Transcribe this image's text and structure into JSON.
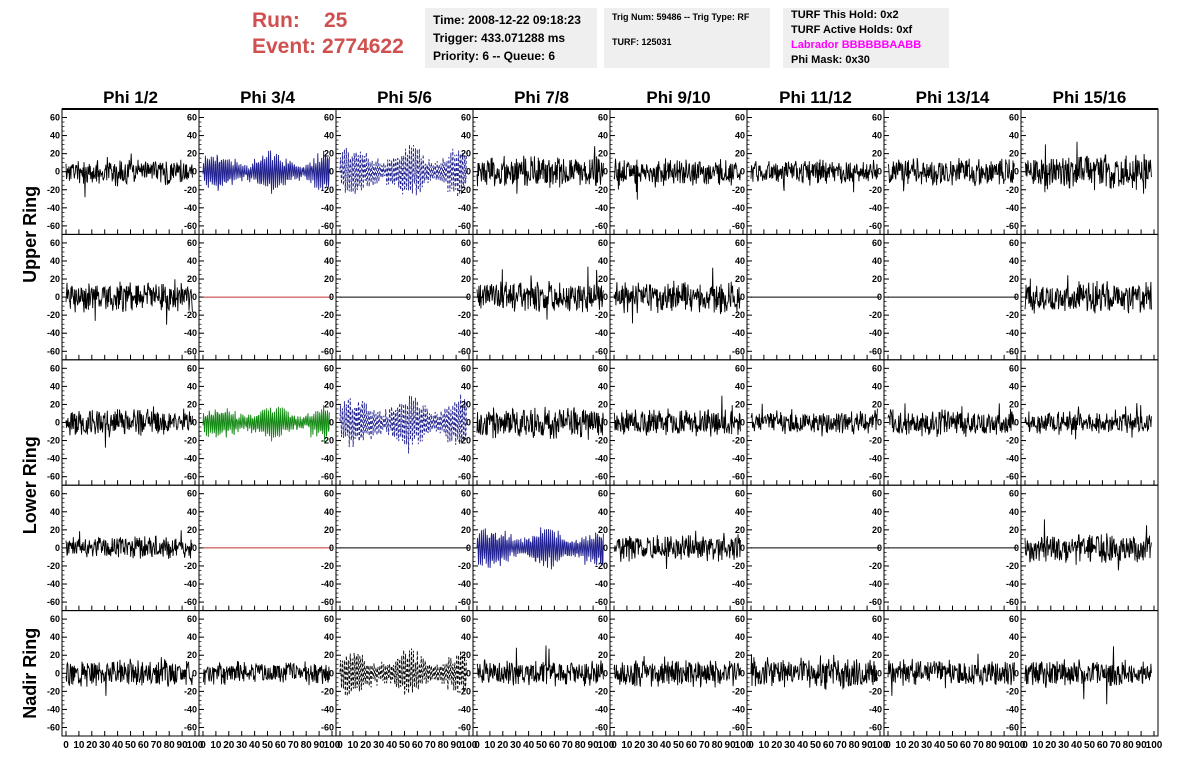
{
  "header": {
    "run_label": "Run:",
    "run_value": "25",
    "event_label": "Event:",
    "event_value": "2774622",
    "time": "Time: 2008-12-22 09:18:23",
    "trigger": "Trigger: 433.071288 ms",
    "priority": "Priority: 6 -- Queue: 6",
    "trig_num": "Trig Num: 59486 -- Trig Type: RF",
    "turf": "TURF: 125031",
    "turf_this_hold": "TURF This Hold: 0x2",
    "turf_active_holds": "TURF Active Holds: 0xf",
    "labrador": "Labrador BBBBBBAABB",
    "phi_mask": "Phi Mask: 0x30"
  },
  "colors": {
    "run_text": "#d05050",
    "labrador_text": "#ff00ff",
    "trace_black": "#000000",
    "trace_blue": "#1f1f8f",
    "trace_green": "#118811",
    "flat_red": "#c03030"
  },
  "chart_data": {
    "type": "line",
    "columns": [
      "Phi 1/2",
      "Phi 3/4",
      "Phi 5/6",
      "Phi 7/8",
      "Phi 9/10",
      "Phi 11/12",
      "Phi 13/14",
      "Phi 15/16"
    ],
    "rows": [
      "Upper Ring",
      "Upper Ring",
      "Lower Ring",
      "Lower Ring",
      "Nadir Ring"
    ],
    "row_labels": [
      {
        "label": "Upper Ring",
        "spans": [
          0,
          1
        ]
      },
      {
        "label": "Lower Ring",
        "spans": [
          2,
          3
        ]
      },
      {
        "label": "Nadir Ring",
        "spans": [
          4,
          4
        ]
      }
    ],
    "xlim": [
      0,
      100
    ],
    "ylim": [
      -65,
      65
    ],
    "y_ticks": [
      -60,
      -40,
      -20,
      0,
      20,
      40,
      60
    ],
    "x_tick_labels": [
      "0",
      "10",
      "20",
      "30",
      "40",
      "50",
      "60",
      "70",
      "80",
      "90",
      "100"
    ],
    "panels": [
      [
        {
          "style": "noise",
          "amp": 14,
          "color": "black",
          "seed": 11
        },
        {
          "style": "burst",
          "amp": 22,
          "color": "blue",
          "seed": 12
        },
        {
          "style": "burst-dashed",
          "amp": 30,
          "color": "blue",
          "seed": 13
        },
        {
          "style": "noise",
          "amp": 16,
          "color": "black",
          "seed": 14
        },
        {
          "style": "noise",
          "amp": 14,
          "color": "black",
          "seed": 15
        },
        {
          "style": "noise",
          "amp": 12,
          "color": "black",
          "seed": 16
        },
        {
          "style": "noise",
          "amp": 14,
          "color": "black",
          "seed": 17
        },
        {
          "style": "noise",
          "amp": 18,
          "color": "black",
          "seed": 18
        }
      ],
      [
        {
          "style": "noise",
          "amp": 16,
          "color": "black",
          "seed": 21
        },
        {
          "style": "flat",
          "amp": 0,
          "color": "red",
          "seed": 22
        },
        {
          "style": "flat",
          "amp": 0,
          "color": "black",
          "seed": 23
        },
        {
          "style": "noise",
          "amp": 16,
          "color": "black",
          "seed": 24
        },
        {
          "style": "noise",
          "amp": 16,
          "color": "black",
          "seed": 25
        },
        {
          "style": "flat",
          "amp": 0,
          "color": "black",
          "seed": 26
        },
        {
          "style": "flat",
          "amp": 0,
          "color": "black",
          "seed": 27
        },
        {
          "style": "noise",
          "amp": 16,
          "color": "black",
          "seed": 28
        }
      ],
      [
        {
          "style": "noise",
          "amp": 14,
          "color": "black",
          "seed": 31
        },
        {
          "style": "burst",
          "amp": 20,
          "color": "green",
          "seed": 32
        },
        {
          "style": "burst-dashed",
          "amp": 30,
          "color": "blue",
          "seed": 33
        },
        {
          "style": "noise",
          "amp": 16,
          "color": "black",
          "seed": 34
        },
        {
          "style": "noise",
          "amp": 14,
          "color": "black",
          "seed": 35
        },
        {
          "style": "noise",
          "amp": 12,
          "color": "black",
          "seed": 36
        },
        {
          "style": "noise",
          "amp": 14,
          "color": "black",
          "seed": 37
        },
        {
          "style": "noise",
          "amp": 12,
          "color": "black",
          "seed": 38
        }
      ],
      [
        {
          "style": "noise",
          "amp": 12,
          "color": "black",
          "seed": 41
        },
        {
          "style": "flat",
          "amp": 0,
          "color": "red",
          "seed": 42
        },
        {
          "style": "flat",
          "amp": 0,
          "color": "black",
          "seed": 43
        },
        {
          "style": "burst",
          "amp": 24,
          "color": "blue",
          "seed": 44
        },
        {
          "style": "noise",
          "amp": 14,
          "color": "black",
          "seed": 45
        },
        {
          "style": "flat",
          "amp": 0,
          "color": "black",
          "seed": 46
        },
        {
          "style": "flat",
          "amp": 0,
          "color": "black",
          "seed": 47
        },
        {
          "style": "noise",
          "amp": 16,
          "color": "black",
          "seed": 48
        }
      ],
      [
        {
          "style": "noise",
          "amp": 14,
          "color": "black",
          "seed": 51
        },
        {
          "style": "noise",
          "amp": 12,
          "color": "black",
          "seed": 52
        },
        {
          "style": "burst-dashed",
          "amp": 26,
          "color": "black",
          "seed": 53
        },
        {
          "style": "noise",
          "amp": 14,
          "color": "black",
          "seed": 54
        },
        {
          "style": "noise",
          "amp": 14,
          "color": "black",
          "seed": 55
        },
        {
          "style": "noise",
          "amp": 16,
          "color": "black",
          "seed": 56
        },
        {
          "style": "noise",
          "amp": 14,
          "color": "black",
          "seed": 57
        },
        {
          "style": "noise",
          "amp": 14,
          "color": "black",
          "seed": 58
        }
      ]
    ]
  }
}
